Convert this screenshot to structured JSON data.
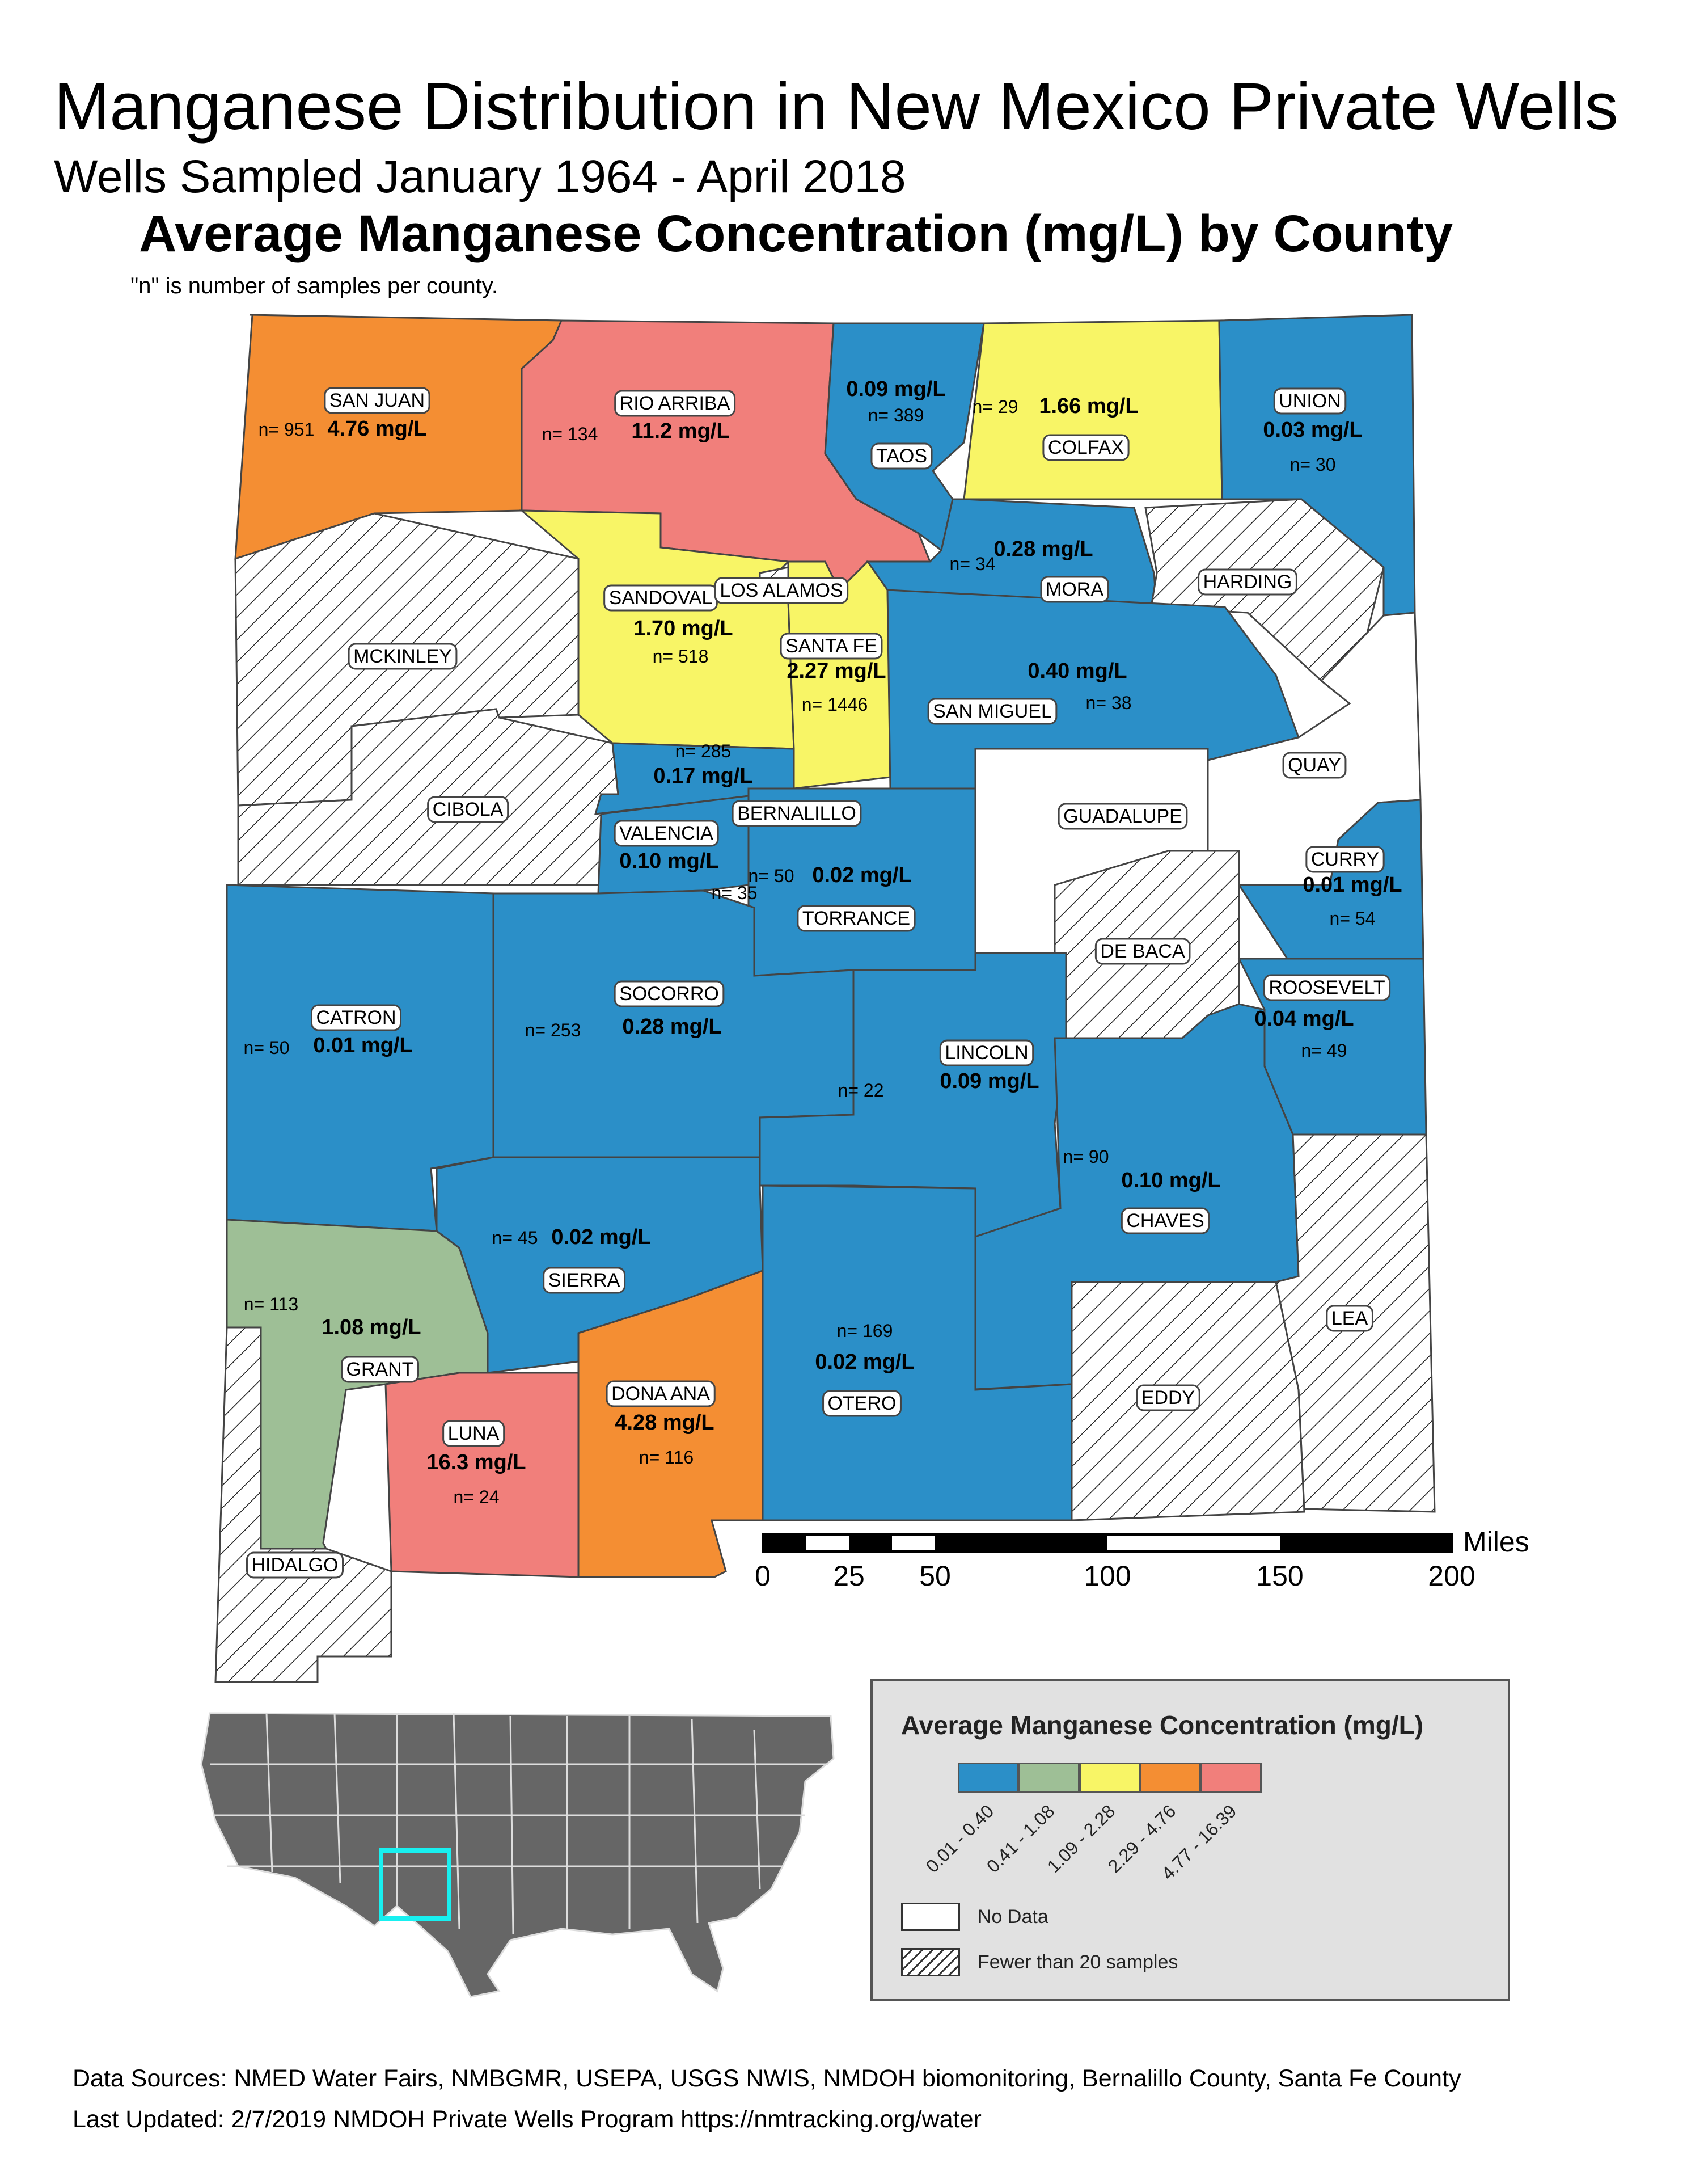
{
  "title": "Manganese Distribution in New Mexico Private Wells",
  "subtitle": "Wells Sampled January 1964 - April 2018",
  "heading": "Average Manganese Concentration (mg/L) by County",
  "note": "\"n\" is number of samples per county.",
  "colors": {
    "class1": "#2b8fc8",
    "class2": "#9ebf96",
    "class3": "#f8f566",
    "class4": "#f48e33",
    "class5": "#f17f7b",
    "no_data": "#ffffff",
    "outline": "#444444"
  },
  "counties": [
    {
      "name": "SAN JUAN",
      "value": "4.76 mg/L",
      "n": "n= 951",
      "class": "class4"
    },
    {
      "name": "RIO ARRIBA",
      "value": "11.2 mg/L",
      "n": "n= 134",
      "class": "class5"
    },
    {
      "name": "TAOS",
      "value": "0.09 mg/L",
      "n": "n= 389",
      "class": "class1"
    },
    {
      "name": "COLFAX",
      "value": "1.66 mg/L",
      "n": "n= 29",
      "class": "class3"
    },
    {
      "name": "UNION",
      "value": "0.03 mg/L",
      "n": "n= 30",
      "class": "class1"
    },
    {
      "name": "MCKINLEY",
      "value": "",
      "n": "",
      "class": "hatch"
    },
    {
      "name": "SANDOVAL",
      "value": "1.70 mg/L",
      "n": "n= 518",
      "class": "class3"
    },
    {
      "name": "LOS ALAMOS",
      "value": "",
      "n": "",
      "class": "hatch"
    },
    {
      "name": "SANTA FE",
      "value": "2.27 mg/L",
      "n": "n= 1446",
      "class": "class3"
    },
    {
      "name": "MORA",
      "value": "0.28 mg/L",
      "n": "n= 34",
      "class": "class1"
    },
    {
      "name": "HARDING",
      "value": "",
      "n": "",
      "class": "hatch"
    },
    {
      "name": "SAN MIGUEL",
      "value": "0.40 mg/L",
      "n": "n= 38",
      "class": "class1"
    },
    {
      "name": "CIBOLA",
      "value": "",
      "n": "",
      "class": "hatch"
    },
    {
      "name": "BERNALILLO",
      "value": "0.17 mg/L",
      "n": "n= 285",
      "class": "class1"
    },
    {
      "name": "VALENCIA",
      "value": "0.10 mg/L",
      "n": "n= 35",
      "class": "class1"
    },
    {
      "name": "TORRANCE",
      "value": "0.02 mg/L",
      "n": "n= 50",
      "class": "class1"
    },
    {
      "name": "GUADALUPE",
      "value": "",
      "n": "",
      "class": "no_data"
    },
    {
      "name": "QUAY",
      "value": "",
      "n": "",
      "class": "no_data"
    },
    {
      "name": "CURRY",
      "value": "0.01 mg/L",
      "n": "n= 54",
      "class": "class1"
    },
    {
      "name": "DE BACA",
      "value": "",
      "n": "",
      "class": "hatch"
    },
    {
      "name": "ROOSEVELT",
      "value": "0.04 mg/L",
      "n": "n= 49",
      "class": "class1"
    },
    {
      "name": "CATRON",
      "value": "0.01 mg/L",
      "n": "n= 50",
      "class": "class1"
    },
    {
      "name": "SOCORRO",
      "value": "0.28 mg/L",
      "n": "n= 253",
      "class": "class1"
    },
    {
      "name": "LINCOLN",
      "value": "0.09 mg/L",
      "n": "n= 22",
      "class": "class1"
    },
    {
      "name": "CHAVES",
      "value": "0.10 mg/L",
      "n": "n= 90",
      "class": "class1"
    },
    {
      "name": "SIERRA",
      "value": "0.02 mg/L",
      "n": "n= 45",
      "class": "class1"
    },
    {
      "name": "GRANT",
      "value": "1.08 mg/L",
      "n": "n= 113",
      "class": "class2"
    },
    {
      "name": "DONA ANA",
      "value": "4.28 mg/L",
      "n": "n= 116",
      "class": "class4"
    },
    {
      "name": "OTERO",
      "value": "0.02 mg/L",
      "n": "n= 169",
      "class": "class1"
    },
    {
      "name": "LUNA",
      "value": "16.3 mg/L",
      "n": "n= 24",
      "class": "class5"
    },
    {
      "name": "LEA",
      "value": "",
      "n": "",
      "class": "hatch"
    },
    {
      "name": "EDDY",
      "value": "",
      "n": "",
      "class": "hatch"
    },
    {
      "name": "HIDALGO",
      "value": "",
      "n": "",
      "class": "hatch"
    }
  ],
  "scale_bar": {
    "unit": "Miles",
    "ticks": [
      "0",
      "25",
      "50",
      "100",
      "150",
      "200"
    ]
  },
  "legend": {
    "title": "Average Manganese Concentration (mg/L)",
    "classes": [
      {
        "label": "0.01 - 0.40",
        "color": "#2b8fc8"
      },
      {
        "label": "0.41 - 1.08",
        "color": "#9ebf96"
      },
      {
        "label": "1.09 - 2.28",
        "color": "#f8f566"
      },
      {
        "label": "2.29 - 4.76",
        "color": "#f48e33"
      },
      {
        "label": "4.77 - 16.39",
        "color": "#f17f7b"
      }
    ],
    "no_data": "No Data",
    "few_samples": "Fewer than 20 samples"
  },
  "footer": {
    "sources": "Data Sources: NMED Water Fairs, NMBGMR, USEPA, USGS NWIS, NMDOH biomonitoring, Bernalillo County, Santa Fe County",
    "updated": "Last Updated: 2/7/2019 NMDOH Private Wells Program https://nmtracking.org/water"
  }
}
